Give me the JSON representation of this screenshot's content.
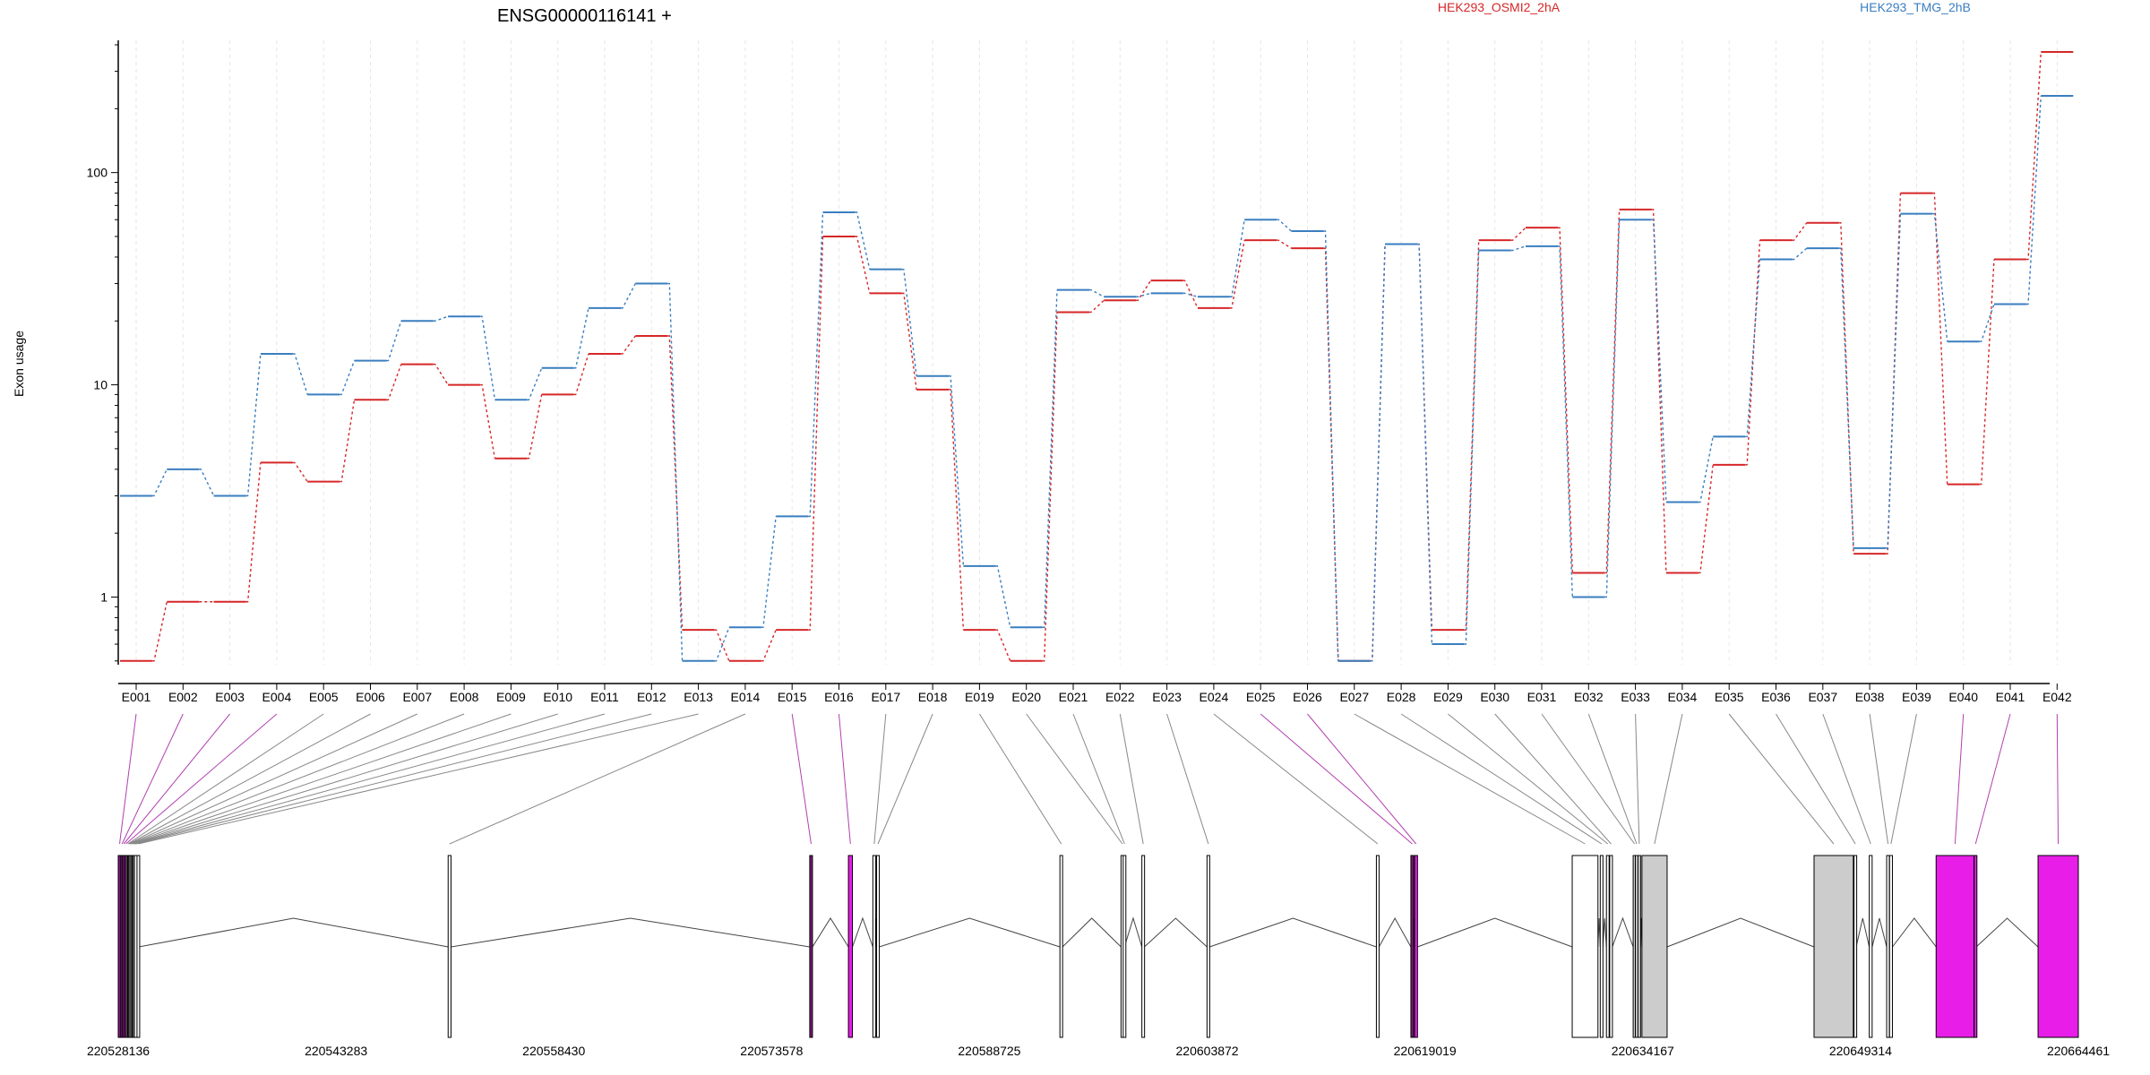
{
  "chart_data": {
    "type": "line",
    "title": "ENSG00000116141 +",
    "ylabel": "Exon usage",
    "yscale": "log",
    "ylim": [
      0.48,
      420
    ],
    "ytick_values": [
      1,
      10,
      100
    ],
    "ytick_labels": [
      "1",
      "10",
      "100"
    ],
    "grid": "vertical-dashed",
    "legend_position": "top",
    "categories": [
      "E001",
      "E002",
      "E003",
      "E004",
      "E005",
      "E006",
      "E007",
      "E008",
      "E009",
      "E010",
      "E011",
      "E012",
      "E013",
      "E014",
      "E015",
      "E016",
      "E017",
      "E018",
      "E019",
      "E020",
      "E021",
      "E022",
      "E023",
      "E024",
      "E025",
      "E026",
      "E027",
      "E028",
      "E029",
      "E030",
      "E031",
      "E032",
      "E033",
      "E034",
      "E035",
      "E036",
      "E037",
      "E038",
      "E039",
      "E040",
      "E041",
      "E042"
    ],
    "series": [
      {
        "name": "HEK293_OSMI2_2hA",
        "color": "#d62728",
        "values": [
          0.5,
          0.95,
          0.95,
          4.3,
          3.5,
          8.5,
          12.5,
          10,
          4.5,
          9,
          14,
          17,
          0.7,
          0.5,
          0.7,
          50,
          27,
          9.5,
          0.7,
          0.5,
          22,
          25,
          31,
          23,
          48,
          44,
          0.5,
          46,
          0.7,
          48,
          55,
          1.3,
          67,
          1.3,
          4.2,
          48,
          58,
          1.6,
          80,
          3.4,
          39,
          370
        ]
      },
      {
        "name": "HEK293_TMG_2hB",
        "color": "#3a7ebf",
        "values": [
          3,
          4,
          3,
          14,
          9,
          13,
          20,
          21,
          8.5,
          12,
          23,
          30,
          0.5,
          0.72,
          2.4,
          65,
          35,
          11,
          1.4,
          0.72,
          28,
          26,
          27,
          26,
          60,
          53,
          0.5,
          46,
          0.6,
          43,
          45,
          1,
          60,
          2.8,
          5.7,
          39,
          44,
          1.7,
          64,
          16,
          24,
          230
        ]
      }
    ],
    "gene_model": {
      "coordinate_ticks": [
        "220528136",
        "220543283",
        "220558430",
        "220573578",
        "220588725",
        "220603872",
        "220619019",
        "220634167",
        "220649314",
        "220664461"
      ],
      "coord_range": [
        220528136,
        220664461
      ],
      "exons": [
        {
          "id": "E001",
          "start": 220528136,
          "end": 220528300,
          "fill": "#7a1a7a"
        },
        {
          "id": "E002",
          "start": 220528310,
          "end": 220528420,
          "fill": "#7a1a7a"
        },
        {
          "id": "E003",
          "start": 220528430,
          "end": 220528560,
          "fill": "#7a1a7a"
        },
        {
          "id": "E004",
          "start": 220528570,
          "end": 220528700,
          "fill": "#7a1a7a"
        },
        {
          "id": "E005",
          "start": 220528710,
          "end": 220528780,
          "fill": "#ffffff"
        },
        {
          "id": "E006",
          "start": 220528790,
          "end": 220528850,
          "fill": "#ffffff"
        },
        {
          "id": "E007",
          "start": 220528860,
          "end": 220528930,
          "fill": "#ffffff"
        },
        {
          "id": "E008",
          "start": 220528940,
          "end": 220529010,
          "fill": "#ffffff"
        },
        {
          "id": "E009",
          "start": 220529020,
          "end": 220529090,
          "fill": "#ffffff"
        },
        {
          "id": "E010",
          "start": 220529100,
          "end": 220529170,
          "fill": "#ffffff"
        },
        {
          "id": "E011",
          "start": 220529180,
          "end": 220529250,
          "fill": "#ffffff"
        },
        {
          "id": "E012",
          "start": 220529260,
          "end": 220529330,
          "fill": "#ffffff"
        },
        {
          "id": "E013",
          "start": 220529440,
          "end": 220529560,
          "fill": "#ffffff"
        },
        {
          "id": "E014",
          "start": 220551080,
          "end": 220551280,
          "fill": "#ffffff"
        },
        {
          "id": "E015",
          "start": 220576230,
          "end": 220576420,
          "fill": "#7a1a7a"
        },
        {
          "id": "E016",
          "start": 220578920,
          "end": 220579200,
          "fill": "#e81ee8"
        },
        {
          "id": "E017",
          "start": 220580620,
          "end": 220580800,
          "fill": "#ffffff"
        },
        {
          "id": "E018",
          "start": 220580880,
          "end": 220581060,
          "fill": "#ffffff"
        },
        {
          "id": "E019",
          "start": 220593630,
          "end": 220593810,
          "fill": "#ffffff"
        },
        {
          "id": "E020",
          "start": 220597880,
          "end": 220597980,
          "fill": "#ffffff"
        },
        {
          "id": "E021",
          "start": 220598030,
          "end": 220598120,
          "fill": "#ffffff"
        },
        {
          "id": "E022",
          "start": 220599330,
          "end": 220599500,
          "fill": "#ffffff"
        },
        {
          "id": "E023",
          "start": 220603860,
          "end": 220604040,
          "fill": "#ffffff"
        },
        {
          "id": "E024",
          "start": 220615640,
          "end": 220615820,
          "fill": "#ffffff"
        },
        {
          "id": "E025",
          "start": 220618040,
          "end": 220618230,
          "fill": "#7a1a7a"
        },
        {
          "id": "E026",
          "start": 220618300,
          "end": 220618500,
          "fill": "#e81ee8"
        },
        {
          "id": "E027",
          "start": 220629260,
          "end": 220631050,
          "fill": "#ffffff"
        },
        {
          "id": "E028",
          "start": 220631210,
          "end": 220631390,
          "fill": "#ffffff"
        },
        {
          "id": "E029",
          "start": 220631640,
          "end": 220631820,
          "fill": "#ffffff"
        },
        {
          "id": "E030",
          "start": 220631870,
          "end": 220632050,
          "fill": "#ffffff"
        },
        {
          "id": "E031",
          "start": 220633500,
          "end": 220633620,
          "fill": "#cccccc"
        },
        {
          "id": "E032",
          "start": 220633650,
          "end": 220633780,
          "fill": "#cccccc"
        },
        {
          "id": "E033",
          "start": 220633830,
          "end": 220634010,
          "fill": "#cccccc"
        },
        {
          "id": "E034",
          "start": 220634110,
          "end": 220635860,
          "fill": "#cccccc"
        },
        {
          "id": "E035",
          "start": 220646080,
          "end": 220648810,
          "fill": "#cccccc"
        },
        {
          "id": "E036",
          "start": 220648860,
          "end": 220649010,
          "fill": "#ffffff"
        },
        {
          "id": "E037",
          "start": 220649920,
          "end": 220650120,
          "fill": "#ffffff"
        },
        {
          "id": "E038",
          "start": 220651130,
          "end": 220651310,
          "fill": "#ffffff"
        },
        {
          "id": "E039",
          "start": 220651330,
          "end": 220651530,
          "fill": "#ffffff"
        },
        {
          "id": "E040",
          "start": 220654570,
          "end": 220657200,
          "fill": "#e81ee8"
        },
        {
          "id": "E041",
          "start": 220657220,
          "end": 220657360,
          "fill": "#e81ee8"
        },
        {
          "id": "E042",
          "start": 220661660,
          "end": 220664461,
          "fill": "#e81ee8"
        }
      ]
    }
  }
}
